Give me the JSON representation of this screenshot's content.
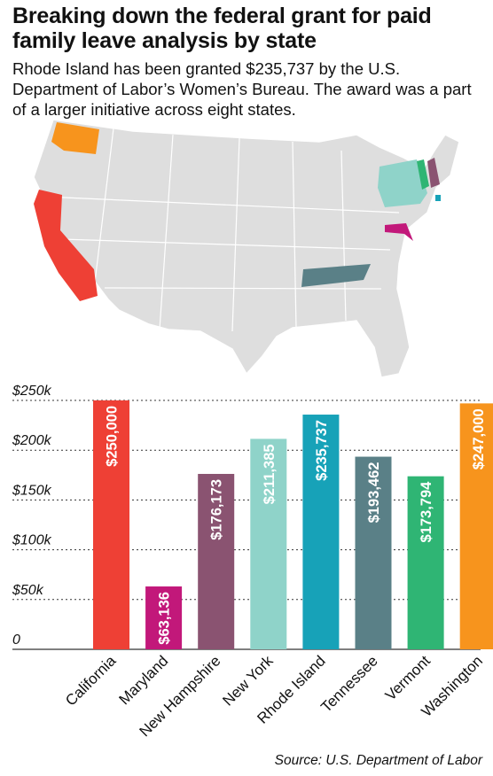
{
  "title": "Breaking down the federal grant for paid family leave analysis by state",
  "subtitle": "Rhode Island has been granted $235,737 by the U.S. Department of Labor’s Women’s Bureau. The award was a part of a larger initiative across eight states.",
  "source": "Source: U.S. Department of Labor",
  "map": {
    "highlighted_states": [
      {
        "state": "Washington",
        "color": "#f7941d"
      },
      {
        "state": "California",
        "color": "#ee4035"
      },
      {
        "state": "Tennessee",
        "color": "#5a8087"
      },
      {
        "state": "New York",
        "color": "#8fd3c9"
      },
      {
        "state": "Vermont",
        "color": "#2fb574"
      },
      {
        "state": "New Hampshire",
        "color": "#8a5371"
      },
      {
        "state": "Rhode Island",
        "color": "#17a2b8"
      },
      {
        "state": "Maryland",
        "color": "#c2187a"
      }
    ],
    "base_color": "#dedede"
  },
  "chart_data": {
    "type": "bar",
    "categories": [
      "California",
      "Maryland",
      "New Hampshire",
      "New York",
      "Rhode Island",
      "Tennessee",
      "Vermont",
      "Washington"
    ],
    "values": [
      250000,
      63136,
      176173,
      211385,
      235737,
      193462,
      173794,
      247000
    ],
    "value_labels": [
      "$250,000",
      "$63,136",
      "$176,173",
      "$211,385",
      "$235,737",
      "$193,462",
      "$173,794",
      "$247,000"
    ],
    "colors": [
      "#ee4035",
      "#c2187a",
      "#8a5371",
      "#8fd3c9",
      "#17a2b8",
      "#5a8087",
      "#2fb574",
      "#f7941d"
    ],
    "yticks": [
      0,
      50000,
      100000,
      150000,
      200000,
      250000
    ],
    "ytick_labels": [
      "0",
      "$50k",
      "$100k",
      "$150k",
      "$200k",
      "$250k"
    ],
    "ylim": [
      0,
      250000
    ],
    "grid": true
  }
}
